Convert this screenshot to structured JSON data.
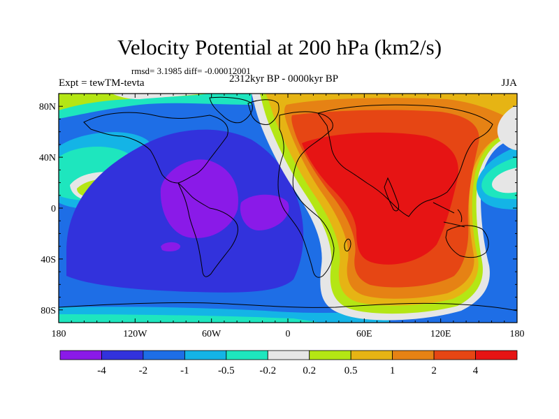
{
  "header": {
    "title": "Velocity Potential at 200 hPa (km2/s)",
    "stats": "rmsd= 3.1985 diff= -0.00012001",
    "expt": "Expt = tewTM-tevta",
    "period": "2312kyr BP - 0000kyr BP",
    "season": "JJA"
  },
  "map": {
    "lon_range": [
      -180,
      180
    ],
    "lat_range": [
      -90,
      90
    ],
    "lat_ticks": [
      {
        "value": 80,
        "label": "80N"
      },
      {
        "value": 40,
        "label": "40N"
      },
      {
        "value": 0,
        "label": "0"
      },
      {
        "value": -40,
        "label": "40S"
      },
      {
        "value": -80,
        "label": "80S"
      }
    ],
    "lon_ticks": [
      {
        "value": -180,
        "label": "180"
      },
      {
        "value": -120,
        "label": "120W"
      },
      {
        "value": -60,
        "label": "60W"
      },
      {
        "value": 0,
        "label": "0"
      },
      {
        "value": 60,
        "label": "60E"
      },
      {
        "value": 120,
        "label": "120E"
      },
      {
        "value": 180,
        "label": "180"
      }
    ]
  },
  "colorbar": {
    "colors": [
      "#8a1ae8",
      "#3232dc",
      "#1e6ee6",
      "#14b4e6",
      "#1ee6be",
      "#e6e6e6",
      "#b4e614",
      "#e6b414",
      "#e68214",
      "#e64614",
      "#e61414"
    ],
    "labels": [
      "-4",
      "-2",
      "-1",
      "-0.5",
      "-0.2",
      "0.2",
      "0.5",
      "1",
      "2",
      "4"
    ]
  }
}
